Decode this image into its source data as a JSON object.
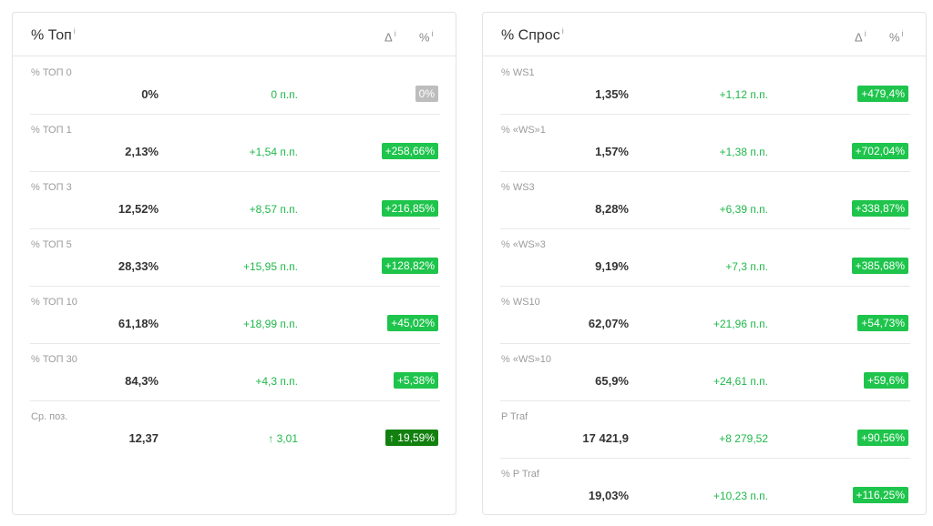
{
  "panels": [
    {
      "title": "% Топ",
      "info": "i",
      "col_delta": "Δ",
      "col_pct": "%",
      "rows": [
        {
          "label": "% ТОП 0",
          "value": "0%",
          "delta": "0 п.п.",
          "pct": "0%",
          "tone": "neutral"
        },
        {
          "label": "% ТОП 1",
          "value": "2,13%",
          "delta": "+1,54 п.п.",
          "pct": "+258,66%",
          "tone": "up"
        },
        {
          "label": "% ТОП 3",
          "value": "12,52%",
          "delta": "+8,57 п.п.",
          "pct": "+216,85%",
          "tone": "up"
        },
        {
          "label": "% ТОП 5",
          "value": "28,33%",
          "delta": "+15,95 п.п.",
          "pct": "+128,82%",
          "tone": "up"
        },
        {
          "label": "% ТОП 10",
          "value": "61,18%",
          "delta": "+18,99 п.п.",
          "pct": "+45,02%",
          "tone": "up"
        },
        {
          "label": "% ТОП 30",
          "value": "84,3%",
          "delta": "+4,3 п.п.",
          "pct": "+5,38%",
          "tone": "up"
        },
        {
          "label": "Ср. поз.",
          "value": "12,37",
          "delta": "↑ 3,01",
          "pct": "↑ 19,59%",
          "tone": "strong"
        }
      ]
    },
    {
      "title": "% Спрос",
      "info": "i",
      "col_delta": "Δ",
      "col_pct": "%",
      "rows": [
        {
          "label": "% WS1",
          "value": "1,35%",
          "delta": "+1,12 п.п.",
          "pct": "+479,4%",
          "tone": "up"
        },
        {
          "label": "% «WS»1",
          "value": "1,57%",
          "delta": "+1,38 п.п.",
          "pct": "+702,04%",
          "tone": "up"
        },
        {
          "label": "% WS3",
          "value": "8,28%",
          "delta": "+6,39 п.п.",
          "pct": "+338,87%",
          "tone": "up"
        },
        {
          "label": "% «WS»3",
          "value": "9,19%",
          "delta": "+7,3 п.п.",
          "pct": "+385,68%",
          "tone": "up"
        },
        {
          "label": "% WS10",
          "value": "62,07%",
          "delta": "+21,96 п.п.",
          "pct": "+54,73%",
          "tone": "up"
        },
        {
          "label": "% «WS»10",
          "value": "65,9%",
          "delta": "+24,61 п.п.",
          "pct": "+59,6%",
          "tone": "up"
        },
        {
          "label": "P Traf",
          "value": "17 421,9",
          "delta": "+8 279,52",
          "pct": "+90,56%",
          "tone": "up"
        },
        {
          "label": "% P Traf",
          "value": "19,03%",
          "delta": "+10,23 п.п.",
          "pct": "+116,25%",
          "tone": "up"
        }
      ]
    }
  ]
}
